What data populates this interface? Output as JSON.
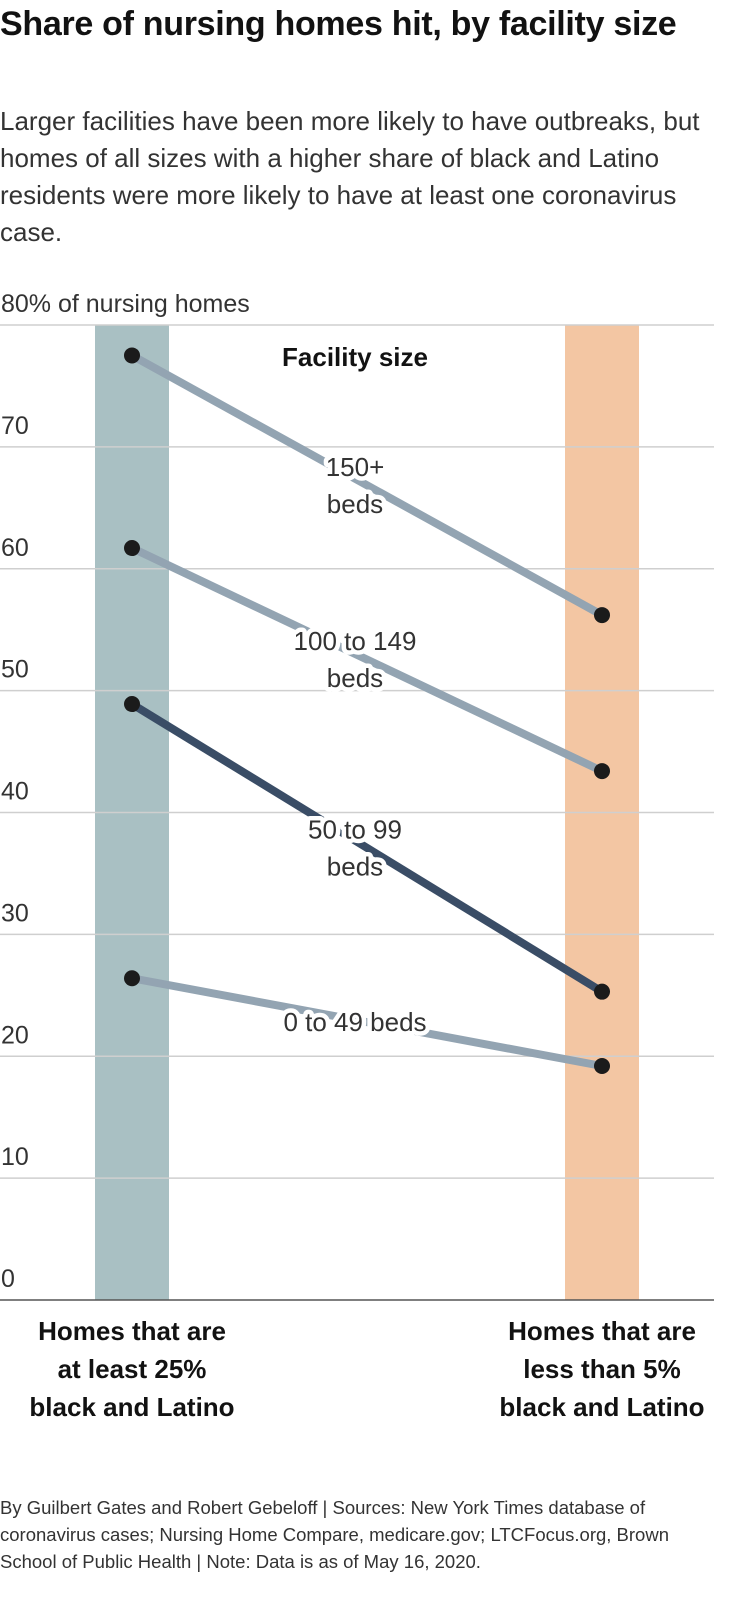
{
  "header": {
    "title": "Share of nursing homes hit, by facility size",
    "subtitle": "Larger facilities have been more likely to have outbreaks, but homes of all sizes with a higher share of black and Latino residents were more likely to have at least one coronavirus case."
  },
  "footer": {
    "source": "By Guilbert Gates and Robert Gebeloff | Sources: New York Times database of coronavirus cases; Nursing Home Compare, medicare.gov; LTCFocus.org, Brown School of Public Health | Note: Data is as of May 16, 2020."
  },
  "chart_data": {
    "type": "line",
    "title": "Share of nursing homes hit, by facility size",
    "ylabel": "% of nursing homes",
    "ylim": [
      0,
      80
    ],
    "yticks": [
      0,
      10,
      20,
      30,
      40,
      50,
      60,
      70,
      80
    ],
    "ytick_labels": [
      "0",
      "10",
      "20",
      "30",
      "40",
      "50",
      "60",
      "70",
      "80% of nursing homes"
    ],
    "categories": [
      "Homes that are at least 25% black and Latino",
      "Homes that are less than 5% black and Latino"
    ],
    "category_lines": [
      [
        "Homes that are",
        "at least 25%",
        "black and Latino"
      ],
      [
        "Homes that are",
        "less than 5%",
        "black and Latino"
      ]
    ],
    "category_colors": [
      "#a9c0c3",
      "#f3c6a3"
    ],
    "legend_title": "Facility size",
    "grid": true,
    "series": [
      {
        "name": "150+ beds",
        "label_lines": [
          "150+",
          "beds"
        ],
        "values": [
          77.5,
          56.2
        ],
        "color": "#93a4b2"
      },
      {
        "name": "100 to 149 beds",
        "label_lines": [
          "100 to 149",
          "beds"
        ],
        "values": [
          61.7,
          43.4
        ],
        "color": "#93a4b2"
      },
      {
        "name": "50 to 99 beds",
        "label_lines": [
          "50 to 99",
          "beds"
        ],
        "values": [
          48.9,
          25.3
        ],
        "color": "#3a4d66"
      },
      {
        "name": "0 to 49 beds",
        "label_lines": [
          "0 to 49 beds"
        ],
        "values": [
          26.4,
          19.2
        ],
        "color": "#93a4b2"
      }
    ]
  }
}
